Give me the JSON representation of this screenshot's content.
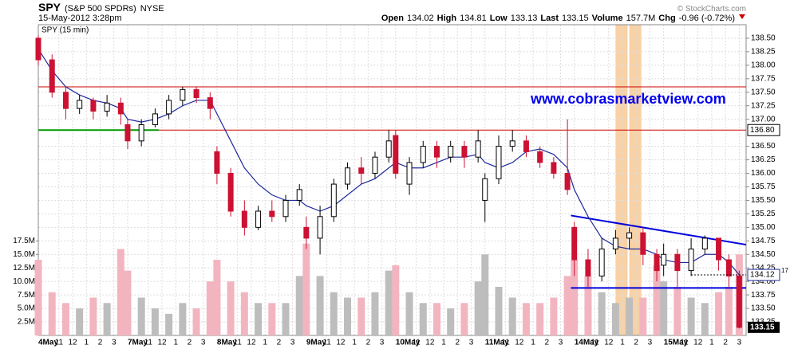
{
  "header": {
    "symbol": "SPY",
    "name": "(S&P 500 SPDRs)",
    "exchange": "NYSE",
    "copyright": "© StockCharts.com",
    "date": "15-May-2012 3:28pm",
    "quote": [
      {
        "label": "Open",
        "value": "134.02"
      },
      {
        "label": "High",
        "value": "134.81"
      },
      {
        "label": "Low",
        "value": "133.13"
      },
      {
        "label": "Last",
        "value": "133.15"
      },
      {
        "label": "Volume",
        "value": "157.7M"
      },
      {
        "label": "Chg",
        "value": "-0.96 (-0.72%)"
      }
    ]
  },
  "chart_data": {
    "type": "candlestick",
    "title": "SPY (15 min)",
    "annotation": "www.cobrasmarketview.com",
    "x": [
      0,
      4,
      8,
      12,
      16,
      20,
      24,
      26,
      30,
      34,
      38,
      42,
      46,
      50,
      52,
      56,
      60,
      64,
      68,
      72,
      76,
      78,
      82,
      86,
      90,
      94,
      98,
      102,
      104,
      108,
      112,
      116,
      120,
      124,
      128,
      130,
      134,
      138,
      142,
      146,
      150,
      154,
      156,
      160,
      164,
      168,
      172,
      176,
      180,
      182,
      186,
      190,
      194,
      198,
      201,
      204
    ],
    "open": [
      138.5,
      138.1,
      137.5,
      137.2,
      137.35,
      137.15,
      137.3,
      136.9,
      136.6,
      136.9,
      137.1,
      137.35,
      137.55,
      137.4,
      136.4,
      136.0,
      135.3,
      135.0,
      135.3,
      135.2,
      135.5,
      135.0,
      134.8,
      135.2,
      135.8,
      136.1,
      136.0,
      136.3,
      136.7,
      135.8,
      136.2,
      136.5,
      136.3,
      136.5,
      136.3,
      135.5,
      135.9,
      136.5,
      136.6,
      136.4,
      136.2,
      136.0,
      135.0,
      134.4,
      134.1,
      134.6,
      134.8,
      134.9,
      134.5,
      134.3,
      134.5,
      134.2,
      134.6,
      134.8,
      134.4,
      134.1
    ],
    "high": [
      138.55,
      138.2,
      137.6,
      137.45,
      137.4,
      137.45,
      137.4,
      137.0,
      137.0,
      137.2,
      137.45,
      137.6,
      137.6,
      137.5,
      136.5,
      136.1,
      135.5,
      135.4,
      135.5,
      135.6,
      135.8,
      135.2,
      135.4,
      135.9,
      136.2,
      136.3,
      136.4,
      136.8,
      136.8,
      136.3,
      136.6,
      136.6,
      136.6,
      136.6,
      136.8,
      136.0,
      136.7,
      136.8,
      136.7,
      136.5,
      136.3,
      137.0,
      135.1,
      134.6,
      134.8,
      134.95,
      135.0,
      135.0,
      134.6,
      134.7,
      134.6,
      134.8,
      134.85,
      134.8,
      134.5,
      134.2
    ],
    "low": [
      138.0,
      137.4,
      137.0,
      137.1,
      137.0,
      137.05,
      136.9,
      136.45,
      136.5,
      136.85,
      137.0,
      137.25,
      137.3,
      137.0,
      135.8,
      135.2,
      134.85,
      134.95,
      135.1,
      135.1,
      135.4,
      134.6,
      134.5,
      135.1,
      135.7,
      135.8,
      135.9,
      136.2,
      135.9,
      135.6,
      136.1,
      136.1,
      136.2,
      136.1,
      136.2,
      135.1,
      135.8,
      136.4,
      136.3,
      136.1,
      135.9,
      135.6,
      134.1,
      133.9,
      134.0,
      134.5,
      134.6,
      134.3,
      134.0,
      134.1,
      133.9,
      134.1,
      134.5,
      134.2,
      133.9,
      133.13
    ],
    "close": [
      138.1,
      137.5,
      137.2,
      137.35,
      137.15,
      137.3,
      137.1,
      136.6,
      136.9,
      137.1,
      137.35,
      137.55,
      137.4,
      137.2,
      136.0,
      135.3,
      135.0,
      135.3,
      135.2,
      135.5,
      135.7,
      134.8,
      135.2,
      135.8,
      136.1,
      136.0,
      136.3,
      136.6,
      136.0,
      136.2,
      136.5,
      136.3,
      136.5,
      136.3,
      136.6,
      135.9,
      136.5,
      136.6,
      136.4,
      136.2,
      136.0,
      135.7,
      134.4,
      134.1,
      134.6,
      134.8,
      134.9,
      134.5,
      134.2,
      134.5,
      134.2,
      134.6,
      134.8,
      134.4,
      134.1,
      133.15
    ],
    "volume": [
      14,
      8,
      6,
      5,
      7,
      6,
      16,
      12,
      7,
      5,
      4,
      6,
      5,
      10,
      14,
      10,
      8,
      6,
      6,
      6,
      11,
      17,
      11,
      8,
      7,
      7,
      8,
      12,
      13,
      8,
      6,
      6,
      5,
      6,
      10,
      15,
      9,
      7,
      6,
      6,
      7,
      11,
      14,
      11,
      8,
      6,
      7,
      7,
      13,
      10,
      9,
      7,
      6,
      8,
      9,
      15
    ],
    "sma": [
      138.3,
      137.9,
      137.6,
      137.45,
      137.35,
      137.3,
      137.2,
      137.0,
      136.95,
      137.0,
      137.1,
      137.25,
      137.35,
      137.35,
      137.1,
      136.6,
      136.1,
      135.8,
      135.6,
      135.5,
      135.5,
      135.4,
      135.3,
      135.4,
      135.6,
      135.8,
      135.9,
      136.1,
      136.2,
      136.1,
      136.1,
      136.2,
      136.3,
      136.3,
      136.35,
      136.2,
      136.1,
      136.2,
      136.4,
      136.45,
      136.35,
      136.1,
      135.7,
      135.2,
      134.8,
      134.65,
      134.6,
      134.6,
      134.5,
      134.4,
      134.35,
      134.35,
      134.5,
      134.5,
      134.35,
      134.12
    ],
    "up_color": "#000000",
    "down_color": "#cc1133",
    "sma_color": "#1f2a9c",
    "volume_up_color": "#bdbdbd",
    "volume_down_color": "#f2b5c0",
    "xlim": [
      0,
      206
    ],
    "ylim": [
      133.0,
      138.75
    ],
    "vlim": [
      0,
      57.5
    ],
    "yticks": [
      {
        "value": 133.25,
        "label": "133.25"
      },
      {
        "value": 133.5,
        "label": "133.50"
      },
      {
        "value": 133.75,
        "label": "133.75"
      },
      {
        "value": 134.0,
        "label": "134.00"
      },
      {
        "value": 134.25,
        "label": "134.25"
      },
      {
        "value": 134.5,
        "label": "134.50"
      },
      {
        "value": 134.75,
        "label": "134.75"
      },
      {
        "value": 135.0,
        "label": "135.00"
      },
      {
        "value": 135.25,
        "label": "135.25"
      },
      {
        "value": 135.5,
        "label": "135.50"
      },
      {
        "value": 135.75,
        "label": "135.75"
      },
      {
        "value": 136.0,
        "label": "136.00"
      },
      {
        "value": 136.25,
        "label": "136.25"
      },
      {
        "value": 136.5,
        "label": "136.50"
      },
      {
        "value": 137.0,
        "label": "137.00"
      },
      {
        "value": 137.25,
        "label": "137.25"
      },
      {
        "value": 137.5,
        "label": "137.50"
      },
      {
        "value": 137.75,
        "label": "137.75"
      },
      {
        "value": 138.0,
        "label": "138.00"
      },
      {
        "value": 138.25,
        "label": "138.25"
      },
      {
        "value": 138.5,
        "label": "138.50"
      }
    ],
    "vticks": [
      {
        "value": 2.5,
        "label": "2.5M"
      },
      {
        "value": 5,
        "label": "5.0M"
      },
      {
        "value": 7.5,
        "label": "7.5M"
      },
      {
        "value": 10,
        "label": "10.0M"
      },
      {
        "value": 12.5,
        "label": "12.5M"
      },
      {
        "value": 15,
        "label": "15.0M"
      },
      {
        "value": 17.5,
        "label": "17.5M"
      }
    ],
    "xticks": [
      {
        "value": 0,
        "label": "4May"
      },
      {
        "value": 6,
        "label": "11"
      },
      {
        "value": 10,
        "label": "12"
      },
      {
        "value": 14,
        "label": "1"
      },
      {
        "value": 18,
        "label": "2"
      },
      {
        "value": 22,
        "label": "3"
      },
      {
        "value": 26,
        "label": "7May"
      },
      {
        "value": 32,
        "label": "11"
      },
      {
        "value": 36,
        "label": "12"
      },
      {
        "value": 40,
        "label": "1"
      },
      {
        "value": 44,
        "label": "2"
      },
      {
        "value": 48,
        "label": "3"
      },
      {
        "value": 52,
        "label": "8May"
      },
      {
        "value": 58,
        "label": "11"
      },
      {
        "value": 62,
        "label": "12"
      },
      {
        "value": 66,
        "label": "1"
      },
      {
        "value": 70,
        "label": "2"
      },
      {
        "value": 74,
        "label": "3"
      },
      {
        "value": 78,
        "label": "9May"
      },
      {
        "value": 84,
        "label": "11"
      },
      {
        "value": 88,
        "label": "12"
      },
      {
        "value": 92,
        "label": "1"
      },
      {
        "value": 96,
        "label": "2"
      },
      {
        "value": 100,
        "label": "3"
      },
      {
        "value": 104,
        "label": "10May"
      },
      {
        "value": 110,
        "label": "11"
      },
      {
        "value": 114,
        "label": "12"
      },
      {
        "value": 118,
        "label": "1"
      },
      {
        "value": 122,
        "label": "2"
      },
      {
        "value": 126,
        "label": "3"
      },
      {
        "value": 130,
        "label": "11May"
      },
      {
        "value": 136,
        "label": "11"
      },
      {
        "value": 140,
        "label": "12"
      },
      {
        "value": 144,
        "label": "1"
      },
      {
        "value": 148,
        "label": "2"
      },
      {
        "value": 152,
        "label": "3"
      },
      {
        "value": 156,
        "label": "14May"
      },
      {
        "value": 162,
        "label": "11"
      },
      {
        "value": 166,
        "label": "12"
      },
      {
        "value": 170,
        "label": "1"
      },
      {
        "value": 174,
        "label": "2"
      },
      {
        "value": 178,
        "label": "3"
      },
      {
        "value": 182,
        "label": "15May"
      },
      {
        "value": 188,
        "label": "11"
      },
      {
        "value": 192,
        "label": "12"
      },
      {
        "value": 196,
        "label": "1"
      },
      {
        "value": 200,
        "label": "2"
      },
      {
        "value": 204,
        "label": "3"
      }
    ],
    "hlines": [
      {
        "value": 137.6,
        "color": "#cc0000"
      },
      {
        "value": 136.8,
        "label": "136.80",
        "color": "#cc0000"
      },
      {
        "value": 136.8,
        "color": "#009900",
        "xlim": [
          0,
          35
        ]
      },
      {
        "value": 133.88,
        "color": "#0000dd",
        "xlim": [
          155,
          206
        ]
      }
    ],
    "trendline": {
      "x": [
        155,
        206
      ],
      "y": [
        135.22,
        134.68
      ],
      "color": "#0000dd"
    },
    "highlights": [
      [
        168,
        171.5
      ],
      [
        172,
        175.5
      ]
    ],
    "highlight_color": "#f6c58e",
    "sma_last": 134.12,
    "sma_last_note": "17",
    "last_price": 133.15,
    "grid": true
  }
}
